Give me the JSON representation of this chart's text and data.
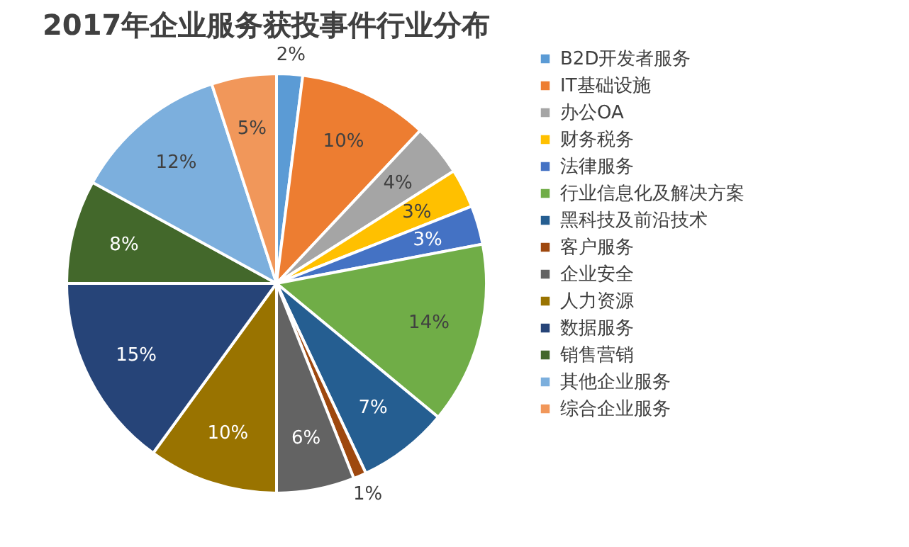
{
  "chart_data": {
    "type": "pie",
    "title": "2017年企业服务获投事件行业分布",
    "categories": [
      "B2D开发者服务",
      "IT基础设施",
      "办公OA",
      "财务税务",
      "法律服务",
      "行业信息化及解决方案",
      "黑科技及前沿技术",
      "客户服务",
      "企业安全",
      "人力资源",
      "数据服务",
      "销售营销",
      "其他企业服务",
      "综合企业服务"
    ],
    "values": [
      2,
      10,
      4,
      3,
      3,
      14,
      7,
      1,
      6,
      10,
      15,
      8,
      12,
      5
    ],
    "value_labels": [
      "2%",
      "10%",
      "4%",
      "3%",
      "3%",
      "14%",
      "7%",
      "1%",
      "6%",
      "10%",
      "15%",
      "8%",
      "12%",
      "5%"
    ],
    "colors": [
      "#5b9bd5",
      "#ed7d31",
      "#a5a5a5",
      "#ffc000",
      "#4472c4",
      "#70ad47",
      "#255e91",
      "#9e480e",
      "#636363",
      "#997300",
      "#264478",
      "#43682b",
      "#7cafdd",
      "#f1975a"
    ],
    "legend": "right"
  }
}
